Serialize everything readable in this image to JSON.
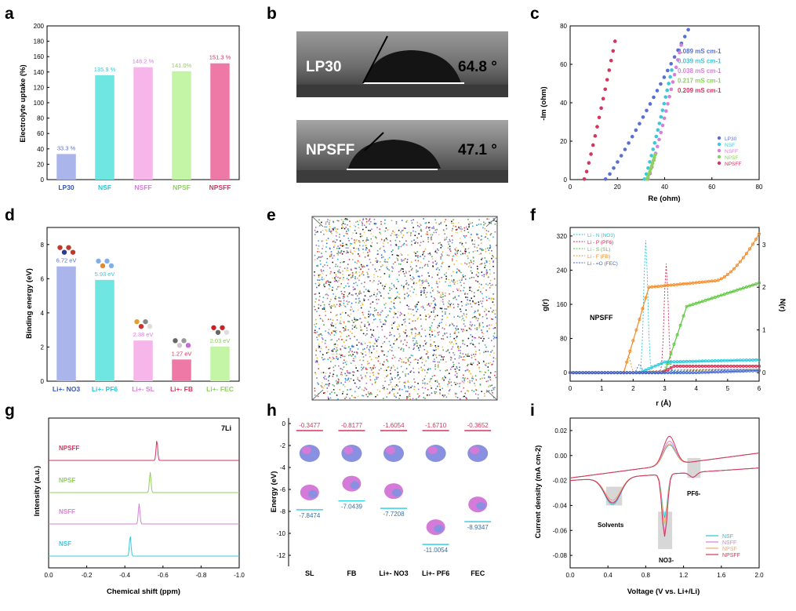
{
  "panel_labels": [
    "a",
    "b",
    "c",
    "d",
    "e",
    "f",
    "g",
    "h",
    "i"
  ],
  "colors": {
    "LP30": "#aab5ec",
    "NSF": "#6fe6e2",
    "NSFF": "#f6b6e9",
    "NPSF": "#c4f5a6",
    "NPSFF": "#ee78a6",
    "LP30_pt": "#5a6fd0",
    "NSF_pt": "#38c9dc",
    "NSFF_pt": "#d680d8",
    "NPSF_pt": "#8ed05d",
    "NPSFF_pt": "#d3365f",
    "orange": "#f08a2a",
    "green": "#5cc43a",
    "red": "#d8274a",
    "cyan": "#25c6d8",
    "blue": "#4466cc",
    "li_top": "#d6375e",
    "li_bot": "#3ad0e4"
  },
  "panel_b": {
    "top": {
      "name": "LP30",
      "angle": "64.8 °"
    },
    "bottom": {
      "name": "NPSFF",
      "angle": "47.1 °"
    }
  },
  "panel_e": {
    "description_glyph": "molecular dynamics box"
  },
  "chart_data": [
    {
      "id": "a",
      "type": "bar",
      "title": "",
      "ylabel": "Electrolyte uptake (%)",
      "xlabel": "",
      "ylim": [
        0,
        200
      ],
      "yticks": [
        0,
        20,
        40,
        60,
        80,
        100,
        120,
        140,
        160,
        180,
        200
      ],
      "categories": [
        "LP30",
        "NSF",
        "NSFF",
        "NPSF",
        "NPSFF"
      ],
      "values": [
        33.3,
        135.9,
        146.2,
        141.0,
        151.3
      ],
      "labels": [
        "33.3 %",
        "135.9 %",
        "146.2 %",
        "141.0%",
        "151.3 %"
      ],
      "label_colors": [
        "#5a6fd0",
        "#38c9dc",
        "#d680d8",
        "#8ed05d",
        "#d3365f"
      ],
      "tick_colors": [
        "#3355bb",
        "#25c6d8",
        "#d680d8",
        "#8ed05d",
        "#d3365f"
      ]
    },
    {
      "id": "c",
      "type": "scatter",
      "xlabel": "Re (ohm)",
      "ylabel": "-Im (ohm)",
      "xlim": [
        0,
        80
      ],
      "ylim": [
        0,
        80
      ],
      "xticks": [
        0,
        20,
        40,
        60,
        80
      ],
      "yticks": [
        0,
        20,
        40,
        60,
        80
      ],
      "conductivity": [
        "0.089 mS cm-1",
        "0.039 mS cm-1",
        "0.038 mS cm-1",
        "0.217 mS cm-1",
        "0.209 mS cm-1"
      ],
      "series": [
        {
          "name": "LP30",
          "x0": 15.0,
          "x1": 50.0,
          "y1": 78.0,
          "n": 24
        },
        {
          "name": "NSF",
          "x0": 31.5,
          "x1": 43.0,
          "y1": 57.0,
          "n": 18
        },
        {
          "name": "NSFF",
          "x0": 33.0,
          "x1": 47.0,
          "y1": 70.0,
          "n": 20
        },
        {
          "name": "NPSF",
          "x0": 32.5,
          "x1": 36.0,
          "y1": 13.0,
          "n": 10
        },
        {
          "name": "NPSFF",
          "x0": 6.0,
          "x1": 19.0,
          "y1": 72.0,
          "n": 16
        }
      ]
    },
    {
      "id": "d",
      "type": "bar",
      "ylabel": "Binding energy (eV)",
      "ylim": [
        0,
        9
      ],
      "yticks": [
        0,
        2,
        4,
        6,
        8
      ],
      "categories": [
        "Li+- NO3",
        "Li+- PF6",
        "Li+- SL",
        "Li+- FB",
        "Li+- FEC"
      ],
      "values": [
        6.72,
        5.93,
        2.38,
        1.27,
        2.03
      ],
      "labels": [
        "6.72 eV",
        "5.93 eV",
        "2.38 eV",
        "1.27 eV",
        "2.03 eV"
      ],
      "label_colors": [
        "#5a6fd0",
        "#38c9dc",
        "#d680d8",
        "#d3365f",
        "#8ed05d"
      ],
      "tick_colors": [
        "#3355bb",
        "#25c6d8",
        "#d680d8",
        "#d3365f",
        "#8ed05d"
      ]
    },
    {
      "id": "f",
      "type": "line",
      "xlabel": "r (Å)",
      "ylabel": "g(r)",
      "y2label": "N(r)",
      "xlim": [
        0,
        6
      ],
      "ylim": [
        -20,
        340
      ],
      "y2lim": [
        -0.2,
        3.4
      ],
      "xticks": [
        0,
        1,
        2,
        3,
        4,
        5,
        6
      ],
      "yticks": [
        0,
        80,
        160,
        240,
        320
      ],
      "y2ticks": [
        0,
        1,
        2,
        3
      ],
      "annotation": "NPSFF",
      "legend": [
        "Li - N (NO3)",
        "Li - P (PF6)",
        "Li - S (SL)",
        "Li - F (FB)",
        "Li - =O (FEC)"
      ]
    },
    {
      "id": "g",
      "type": "line",
      "xlabel": "Chemical shift (ppm)",
      "ylabel": "Intensity (a.u.)",
      "xlim": [
        0.0,
        -1.0
      ],
      "xticks": [
        "0.0",
        "-0.2",
        "-0.4",
        "-0.6",
        "-0.8",
        "-1.0"
      ],
      "nucleus": "7Li",
      "series": [
        {
          "name": "NPSFF",
          "peak": -0.568
        },
        {
          "name": "NPSF",
          "peak": -0.533
        },
        {
          "name": "NSFF",
          "peak": -0.475
        },
        {
          "name": "NSF",
          "peak": -0.428
        }
      ]
    },
    {
      "id": "h",
      "type": "bar",
      "ylabel": "Energy (eV)",
      "ylim": [
        -13,
        0.5
      ],
      "yticks": [
        0,
        -2,
        -4,
        -6,
        -8,
        -10,
        -12
      ],
      "categories": [
        "SL",
        "FB",
        "Li+- NO3",
        "Li+- PF6",
        "FEC"
      ],
      "lumo": [
        -0.3477,
        -0.8177,
        -1.6054,
        -1.671,
        -0.3652
      ],
      "homo": [
        -7.8474,
        -7.0439,
        -7.7208,
        -11.0054,
        -8.9347
      ],
      "lumo_labels": [
        "-0.3477",
        "-0.8177",
        "-1.6054",
        "-1.6710",
        "-0.3652"
      ],
      "homo_labels": [
        "-7.8474",
        "-7.0439",
        "-7.7208",
        "-11.0054",
        "-8.9347"
      ]
    },
    {
      "id": "i",
      "type": "line",
      "xlabel": "Voltage (V vs. Li+/Li)",
      "ylabel": "Current density (mA cm-2)",
      "xlim": [
        0,
        2.0
      ],
      "ylim": [
        -0.09,
        0.03
      ],
      "xticks": [
        "0.0",
        "0.4",
        "0.8",
        "1.2",
        "1.6",
        "2.0"
      ],
      "yticks": [
        "0.02",
        "0.00",
        "-0.02",
        "-0.04",
        "-0.06",
        "-0.08"
      ],
      "annotations": [
        "Solvents",
        "NO3-",
        "PF6-"
      ],
      "legend": [
        "NSF",
        "NSFF",
        "NPSF",
        "NPSFF"
      ]
    }
  ]
}
